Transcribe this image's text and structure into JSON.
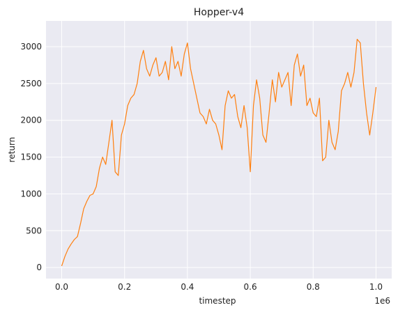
{
  "chart_data": {
    "type": "line",
    "title": "Hopper-v4",
    "xlabel": "timestep",
    "ylabel": "return",
    "x_offset_label": "1e6",
    "xlim": [
      -0.05,
      1.05
    ],
    "ylim": [
      -150,
      3350
    ],
    "xticks": [
      0.0,
      0.2,
      0.4,
      0.6,
      0.8,
      1.0
    ],
    "xtick_labels": [
      "0.0",
      "0.2",
      "0.4",
      "0.6",
      "0.8",
      "1.0"
    ],
    "yticks": [
      0,
      500,
      1000,
      1500,
      2000,
      2500,
      3000
    ],
    "ytick_labels": [
      "0",
      "500",
      "1000",
      "1500",
      "2000",
      "2500",
      "3000"
    ],
    "grid": true,
    "background": "#eaeaf2",
    "grid_color": "#ffffff",
    "series": [
      {
        "color": "#ff7f0e",
        "x": [
          0.0,
          0.01,
          0.02,
          0.03,
          0.04,
          0.05,
          0.06,
          0.07,
          0.08,
          0.09,
          0.1,
          0.11,
          0.12,
          0.13,
          0.14,
          0.15,
          0.16,
          0.17,
          0.18,
          0.19,
          0.2,
          0.21,
          0.22,
          0.23,
          0.24,
          0.25,
          0.26,
          0.27,
          0.28,
          0.29,
          0.3,
          0.31,
          0.32,
          0.33,
          0.34,
          0.35,
          0.36,
          0.37,
          0.38,
          0.39,
          0.4,
          0.41,
          0.42,
          0.43,
          0.44,
          0.45,
          0.46,
          0.47,
          0.48,
          0.49,
          0.5,
          0.51,
          0.52,
          0.53,
          0.54,
          0.55,
          0.56,
          0.57,
          0.58,
          0.59,
          0.6,
          0.61,
          0.62,
          0.63,
          0.64,
          0.65,
          0.66,
          0.67,
          0.68,
          0.69,
          0.7,
          0.71,
          0.72,
          0.73,
          0.74,
          0.75,
          0.76,
          0.77,
          0.78,
          0.79,
          0.8,
          0.81,
          0.82,
          0.83,
          0.84,
          0.85,
          0.86,
          0.87,
          0.88,
          0.89,
          0.9,
          0.91,
          0.92,
          0.93,
          0.94,
          0.95,
          0.96,
          0.97,
          0.98,
          0.99,
          1.0
        ],
        "y": [
          20,
          150,
          250,
          320,
          380,
          420,
          600,
          800,
          900,
          980,
          1000,
          1100,
          1350,
          1500,
          1400,
          1700,
          2000,
          1300,
          1250,
          1800,
          1950,
          2200,
          2300,
          2350,
          2500,
          2800,
          2950,
          2700,
          2600,
          2750,
          2850,
          2600,
          2650,
          2800,
          2550,
          3000,
          2700,
          2800,
          2600,
          2900,
          3050,
          2700,
          2500,
          2300,
          2100,
          2050,
          1950,
          2150,
          2000,
          1950,
          1800,
          1600,
          2200,
          2400,
          2300,
          2350,
          2050,
          1900,
          2200,
          1900,
          1300,
          2200,
          2550,
          2300,
          1800,
          1700,
          2100,
          2550,
          2250,
          2650,
          2450,
          2550,
          2650,
          2200,
          2750,
          2900,
          2600,
          2750,
          2200,
          2300,
          2100,
          2050,
          2300,
          1450,
          1500,
          2000,
          1700,
          1600,
          1850,
          2400,
          2500,
          2650,
          2450,
          2650,
          3100,
          3050,
          2500,
          2100,
          1800,
          2100,
          2450
        ]
      }
    ]
  }
}
